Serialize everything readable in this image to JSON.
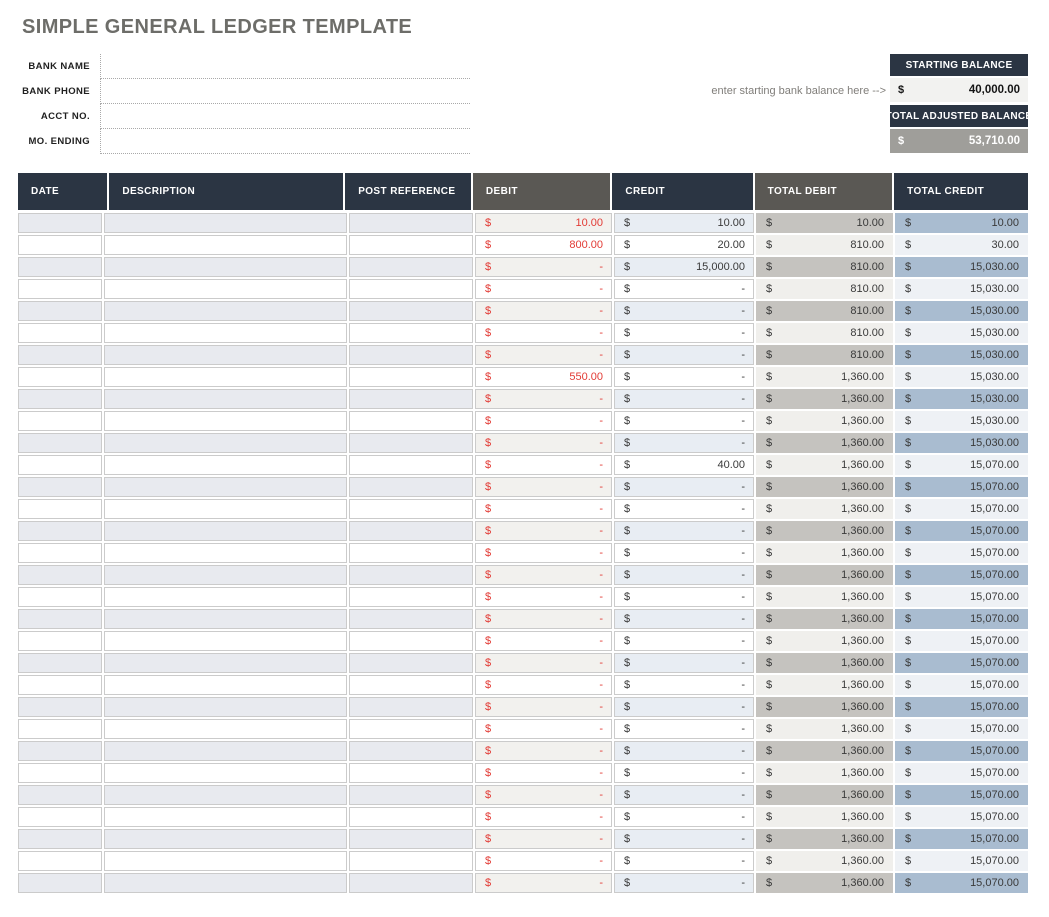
{
  "page": {
    "title": "SIMPLE GENERAL LEDGER TEMPLATE"
  },
  "account_form": {
    "fields": [
      {
        "label": "BANK NAME",
        "value": ""
      },
      {
        "label": "BANK PHONE",
        "value": ""
      },
      {
        "label": "ACCT NO.",
        "value": ""
      },
      {
        "label": "MO. ENDING",
        "value": ""
      }
    ]
  },
  "balances": {
    "hint": "enter starting bank balance here -->",
    "starting": {
      "header": "STARTING BALANCE",
      "currency": "$",
      "amount": "40,000.00"
    },
    "adjusted": {
      "header": "TOTAL ADJUSTED BALANCE",
      "currency": "$",
      "amount": "53,710.00"
    }
  },
  "ledger": {
    "currency": "$",
    "columns": [
      "DATE",
      "DESCRIPTION",
      "POST REFERENCE",
      "DEBIT",
      "CREDIT",
      "TOTAL DEBIT",
      "TOTAL CREDIT"
    ],
    "rows": [
      {
        "date": "",
        "description": "",
        "post_reference": "",
        "debit": "10.00",
        "credit": "10.00",
        "total_debit": "10.00",
        "total_credit": "10.00"
      },
      {
        "date": "",
        "description": "",
        "post_reference": "",
        "debit": "800.00",
        "credit": "20.00",
        "total_debit": "810.00",
        "total_credit": "30.00"
      },
      {
        "date": "",
        "description": "",
        "post_reference": "",
        "debit": "-",
        "credit": "15,000.00",
        "total_debit": "810.00",
        "total_credit": "15,030.00"
      },
      {
        "date": "",
        "description": "",
        "post_reference": "",
        "debit": "-",
        "credit": "-",
        "total_debit": "810.00",
        "total_credit": "15,030.00"
      },
      {
        "date": "",
        "description": "",
        "post_reference": "",
        "debit": "-",
        "credit": "-",
        "total_debit": "810.00",
        "total_credit": "15,030.00"
      },
      {
        "date": "",
        "description": "",
        "post_reference": "",
        "debit": "-",
        "credit": "-",
        "total_debit": "810.00",
        "total_credit": "15,030.00"
      },
      {
        "date": "",
        "description": "",
        "post_reference": "",
        "debit": "-",
        "credit": "-",
        "total_debit": "810.00",
        "total_credit": "15,030.00"
      },
      {
        "date": "",
        "description": "",
        "post_reference": "",
        "debit": "550.00",
        "credit": "-",
        "total_debit": "1,360.00",
        "total_credit": "15,030.00"
      },
      {
        "date": "",
        "description": "",
        "post_reference": "",
        "debit": "-",
        "credit": "-",
        "total_debit": "1,360.00",
        "total_credit": "15,030.00"
      },
      {
        "date": "",
        "description": "",
        "post_reference": "",
        "debit": "-",
        "credit": "-",
        "total_debit": "1,360.00",
        "total_credit": "15,030.00"
      },
      {
        "date": "",
        "description": "",
        "post_reference": "",
        "debit": "-",
        "credit": "-",
        "total_debit": "1,360.00",
        "total_credit": "15,030.00"
      },
      {
        "date": "",
        "description": "",
        "post_reference": "",
        "debit": "-",
        "credit": "40.00",
        "total_debit": "1,360.00",
        "total_credit": "15,070.00"
      },
      {
        "date": "",
        "description": "",
        "post_reference": "",
        "debit": "-",
        "credit": "-",
        "total_debit": "1,360.00",
        "total_credit": "15,070.00"
      },
      {
        "date": "",
        "description": "",
        "post_reference": "",
        "debit": "-",
        "credit": "-",
        "total_debit": "1,360.00",
        "total_credit": "15,070.00"
      },
      {
        "date": "",
        "description": "",
        "post_reference": "",
        "debit": "-",
        "credit": "-",
        "total_debit": "1,360.00",
        "total_credit": "15,070.00"
      },
      {
        "date": "",
        "description": "",
        "post_reference": "",
        "debit": "-",
        "credit": "-",
        "total_debit": "1,360.00",
        "total_credit": "15,070.00"
      },
      {
        "date": "",
        "description": "",
        "post_reference": "",
        "debit": "-",
        "credit": "-",
        "total_debit": "1,360.00",
        "total_credit": "15,070.00"
      },
      {
        "date": "",
        "description": "",
        "post_reference": "",
        "debit": "-",
        "credit": "-",
        "total_debit": "1,360.00",
        "total_credit": "15,070.00"
      },
      {
        "date": "",
        "description": "",
        "post_reference": "",
        "debit": "-",
        "credit": "-",
        "total_debit": "1,360.00",
        "total_credit": "15,070.00"
      },
      {
        "date": "",
        "description": "",
        "post_reference": "",
        "debit": "-",
        "credit": "-",
        "total_debit": "1,360.00",
        "total_credit": "15,070.00"
      },
      {
        "date": "",
        "description": "",
        "post_reference": "",
        "debit": "-",
        "credit": "-",
        "total_debit": "1,360.00",
        "total_credit": "15,070.00"
      },
      {
        "date": "",
        "description": "",
        "post_reference": "",
        "debit": "-",
        "credit": "-",
        "total_debit": "1,360.00",
        "total_credit": "15,070.00"
      },
      {
        "date": "",
        "description": "",
        "post_reference": "",
        "debit": "-",
        "credit": "-",
        "total_debit": "1,360.00",
        "total_credit": "15,070.00"
      },
      {
        "date": "",
        "description": "",
        "post_reference": "",
        "debit": "-",
        "credit": "-",
        "total_debit": "1,360.00",
        "total_credit": "15,070.00"
      },
      {
        "date": "",
        "description": "",
        "post_reference": "",
        "debit": "-",
        "credit": "-",
        "total_debit": "1,360.00",
        "total_credit": "15,070.00"
      },
      {
        "date": "",
        "description": "",
        "post_reference": "",
        "debit": "-",
        "credit": "-",
        "total_debit": "1,360.00",
        "total_credit": "15,070.00"
      },
      {
        "date": "",
        "description": "",
        "post_reference": "",
        "debit": "-",
        "credit": "-",
        "total_debit": "1,360.00",
        "total_credit": "15,070.00"
      },
      {
        "date": "",
        "description": "",
        "post_reference": "",
        "debit": "-",
        "credit": "-",
        "total_debit": "1,360.00",
        "total_credit": "15,070.00"
      },
      {
        "date": "",
        "description": "",
        "post_reference": "",
        "debit": "-",
        "credit": "-",
        "total_debit": "1,360.00",
        "total_credit": "15,070.00"
      },
      {
        "date": "",
        "description": "",
        "post_reference": "",
        "debit": "-",
        "credit": "-",
        "total_debit": "1,360.00",
        "total_credit": "15,070.00"
      },
      {
        "date": "",
        "description": "",
        "post_reference": "",
        "debit": "-",
        "credit": "-",
        "total_debit": "1,360.00",
        "total_credit": "15,070.00"
      }
    ]
  },
  "colors": {
    "header_navy": "#2b3543",
    "header_gray": "#5a5854",
    "debit_red": "#e23b35",
    "stripe_left": "#e8eaef",
    "total_debit_stripe": "#c5c3bf",
    "total_credit_stripe": "#a9bcd0",
    "adjusted_value_bg": "#9f9e9a",
    "title_gray": "#6d6d69"
  }
}
